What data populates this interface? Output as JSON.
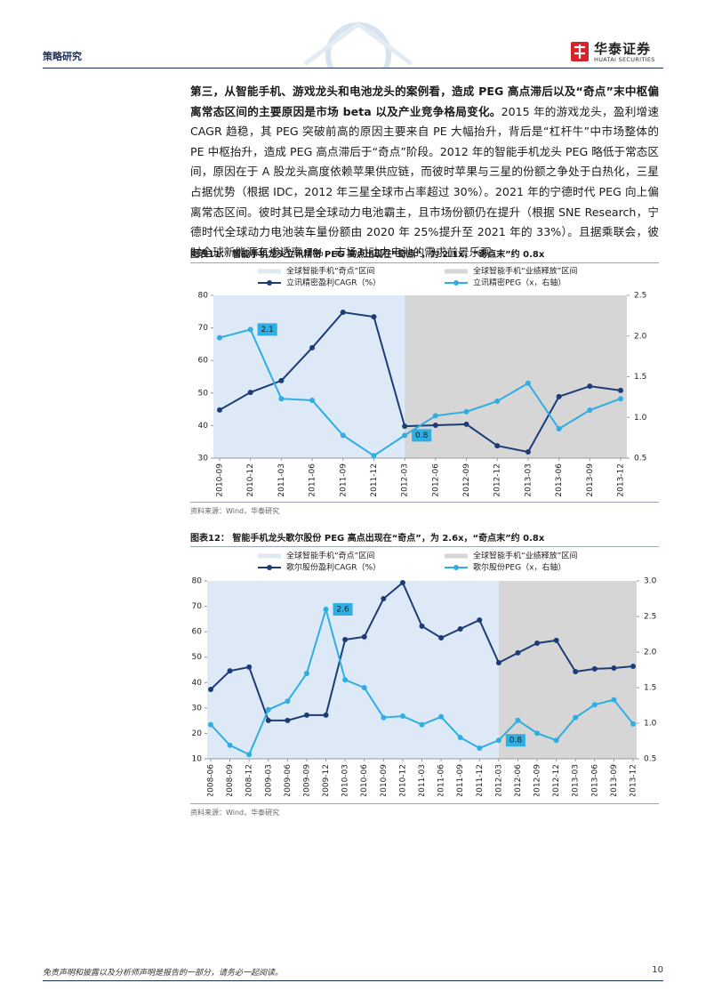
{
  "header": {
    "section": "策略研究",
    "logo": "华泰证券",
    "logo_en": "HUATAI SECURITIES"
  },
  "body": {
    "bold": "第三，从智能手机、游戏龙头和电池龙头的案例看，造成 PEG 高点滞后以及“奇点”末中枢偏离常态区间的主要原因是市场 beta 以及产业竞争格局变化。",
    "text": "2015 年的游戏龙头，盈利增速 CAGR 趋稳，其 PEG 突破前高的原因主要来自 PE 大幅抬升，背后是“杠杆牛”中市场整体的 PE 中枢抬升，造成 PEG 高点滞后于“奇点”阶段。2012 年的智能手机龙头 PEG 略低于常态区间，原因在于 A 股龙头高度依赖苹果供应链，而彼时苹果与三星的份额之争处于白热化，三星占据优势（根据 IDC，2012 年三星全球市占率超过 30%）。2021 年的宁德时代 PEG 向上偏离常态区间。彼时其已是全球动力电池霸主，且市场份额仍在提升（根据 SNE Research，宁德时代全球动力电池装车量份额由 2020 年 25%提升至 2021 年的 33%）。且据乘联会，彼时全球新能源车渗透率 7%，市场对动力电池的需求前景乐观。"
  },
  "chart_data": [
    {
      "type": "line",
      "title": "图表11：  智能手机龙头立讯精密 PEG 高点出现在“奇点”，为 2.1x，“奇点末”约 0.8x",
      "source": "资料来源：Wind，华泰研究",
      "categories": [
        "2010-09",
        "2010-12",
        "2011-03",
        "2011-06",
        "2011-09",
        "2011-12",
        "2012-03",
        "2012-06",
        "2012-09",
        "2012-12",
        "2013-03",
        "2013-06",
        "2013-09",
        "2013-12"
      ],
      "bands": [
        {
          "name": "全球智能手机“奇点”区间",
          "color": "#dde9f6",
          "to": "2012-03"
        },
        {
          "name": "全球智能手机“业绩释放”区间",
          "color": "#d6d6d6",
          "from": "2012-03"
        }
      ],
      "series": [
        {
          "name": "立讯精密盈利CAGR（%）",
          "color": "#1c3c78",
          "values": [
            44.8,
            50.2,
            53.8,
            63.9,
            74.8,
            73.4,
            39.8,
            40.1,
            40.4,
            33.8,
            31.9,
            48.9,
            52.1,
            50.8
          ]
        },
        {
          "name": "立讯精密PEG（x，右轴）",
          "color": "#2eaee3",
          "axis": "y2",
          "values": [
            1.98,
            2.08,
            1.23,
            1.21,
            0.78,
            0.53,
            0.78,
            1.02,
            1.07,
            1.2,
            1.42,
            0.86,
            1.09,
            1.23
          ],
          "value_labels": [
            null,
            "2.1",
            null,
            null,
            null,
            null,
            "0.8",
            null,
            null,
            null,
            null,
            null,
            null,
            null
          ]
        }
      ],
      "ylim": [
        30,
        80
      ],
      "yticks": [
        30,
        40,
        50,
        60,
        70,
        80
      ],
      "y2lim": [
        0.5,
        2.5
      ],
      "y2ticks": [
        0.5,
        {
          "value": 1,
          "label": "1.0"
        },
        1.5,
        {
          "value": 2,
          "label": "2.0"
        },
        2.5
      ]
    },
    {
      "type": "line",
      "title": "图表12：  智能手机龙头歌尔股份 PEG 高点出现在“奇点”，为 2.6x，“奇点末”约 0.8x",
      "source": "资料来源：Wind，华泰研究",
      "categories": [
        "2008-06",
        "2008-09",
        "2008-12",
        "2009-03",
        "2009-06",
        "2009-09",
        "2009-12",
        "2010-03",
        "2010-06",
        "2010-09",
        "2010-12",
        "2011-03",
        "2011-06",
        "2011-09",
        "2011-12",
        "2012-03",
        "2012-06",
        "2012-09",
        "2012-12",
        "2013-03",
        "2013-06",
        "2013-09",
        "2013-12"
      ],
      "bands": [
        {
          "name": "全球智能手机“奇点”区间",
          "color": "#dde9f6",
          "to": "2012-03"
        },
        {
          "name": "全球智能手机“业绩释放”区间",
          "color": "#d6d6d6",
          "from": "2012-03"
        }
      ],
      "series": [
        {
          "name": "歌尔股份盈利CAGR（%）",
          "color": "#1c3c78",
          "values": [
            37.3,
            44.6,
            46.1,
            25.1,
            25.1,
            27.2,
            27.2,
            56.9,
            58.0,
            73.0,
            79.3,
            62.2,
            57.6,
            61.1,
            64.6,
            47.8,
            51.7,
            55.5,
            56.6,
            44.3,
            45.4,
            45.7,
            46.4
          ]
        },
        {
          "name": "歌尔股份PEG（x，右轴）",
          "color": "#2eaee3",
          "axis": "y2",
          "values": [
            0.98,
            0.69,
            0.56,
            1.19,
            1.31,
            1.7,
            2.6,
            1.61,
            1.5,
            1.08,
            1.1,
            0.98,
            1.09,
            0.8,
            0.65,
            0.76,
            1.04,
            0.86,
            0.76,
            1.08,
            1.26,
            1.33,
            0.99
          ],
          "value_labels": [
            null,
            null,
            null,
            null,
            null,
            null,
            "2.6",
            null,
            null,
            null,
            null,
            null,
            null,
            null,
            null,
            "0.8",
            null,
            null,
            null,
            null,
            null,
            null,
            null
          ]
        }
      ],
      "ylim": [
        10,
        80
      ],
      "yticks": [
        10,
        20,
        30,
        40,
        50,
        60,
        70,
        80
      ],
      "y2lim": [
        0.5,
        3.0
      ],
      "y2ticks": [
        0.5,
        {
          "value": 1,
          "label": "1.0"
        },
        1.5,
        {
          "value": 2,
          "label": "2.0"
        },
        2.5,
        {
          "value": 3,
          "label": "3.0"
        }
      ]
    }
  ],
  "footer": {
    "disclaimer": "免责声明和披露以及分析师声明是报告的一部分，请务必一起阅读。",
    "page": "10"
  }
}
